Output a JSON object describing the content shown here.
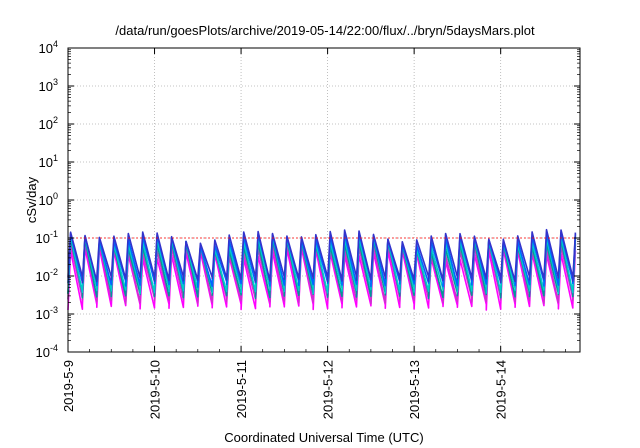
{
  "chart_data": {
    "type": "line",
    "title": "/data/run/goesPlots/archive/2019-05-14/22:00/flux/../bryn/5daysMars.plot",
    "xlabel": "Coordinated Universal Time (UTC)",
    "ylabel": "cSv/day",
    "yscale": "log",
    "ylim": [
      0.0001,
      10000
    ],
    "y_ticks": [
      {
        "base": "10",
        "exp": "-4",
        "value": 0.0001
      },
      {
        "base": "10",
        "exp": "-3",
        "value": 0.001
      },
      {
        "base": "10",
        "exp": "-2",
        "value": 0.01
      },
      {
        "base": "10",
        "exp": "-1",
        "value": 0.1
      },
      {
        "base": "10",
        "exp": "0",
        "value": 1
      },
      {
        "base": "10",
        "exp": "1",
        "value": 10
      },
      {
        "base": "10",
        "exp": "2",
        "value": 100
      },
      {
        "base": "10",
        "exp": "3",
        "value": 1000
      },
      {
        "base": "10",
        "exp": "4",
        "value": 10000
      }
    ],
    "x_ticks": [
      "2019-5-9",
      "2019-5-10",
      "2019-5-11",
      "2019-5-12",
      "2019-5-13",
      "2019-5-14"
    ],
    "xlim": [
      "2019-05-09T00:00",
      "2019-05-14T22:00"
    ],
    "grid": true,
    "legend": "none",
    "threshold_line": {
      "value": 0.1,
      "color": "#ff0000"
    },
    "sawtooth_period_hours": 4,
    "series": [
      {
        "color": "#ff00ff",
        "peak": 0.04,
        "trough": 0.0015
      },
      {
        "color": "#cc33cc",
        "peak": 0.055,
        "trough": 0.0022
      },
      {
        "color": "#009999",
        "peak": 0.07,
        "trough": 0.003
      },
      {
        "color": "#00cccc",
        "peak": 0.085,
        "trough": 0.004
      },
      {
        "color": "#0066ff",
        "peak": 0.1,
        "trough": 0.006
      },
      {
        "color": "#3333cc",
        "peak": 0.12,
        "trough": 0.008
      }
    ]
  }
}
